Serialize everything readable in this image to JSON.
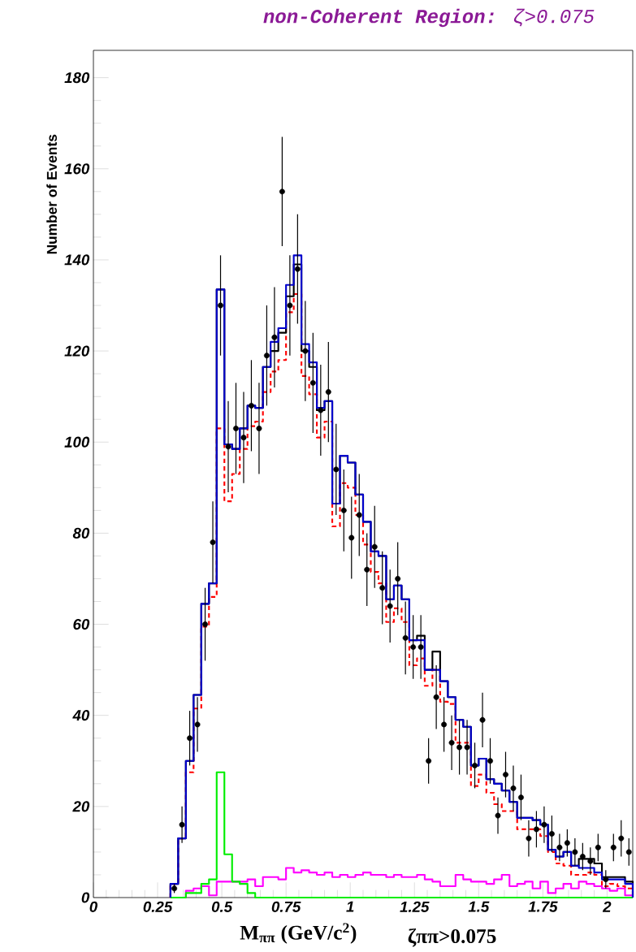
{
  "chart_data": {
    "type": "histogram",
    "title": "**non-Coherent Region:** ζ>0.075",
    "xlabel": "M$_{ππ}$ (GeV/c$^{2}$)",
    "ylabel": "Number of Events",
    "annotations": [
      "ζππ>0.075"
    ],
    "marker": "circle",
    "xlim": [
      0,
      2.1
    ],
    "ylim": [
      0,
      186
    ],
    "xticks": [
      0,
      0.25,
      0.5,
      0.75,
      1,
      1.25,
      1.5,
      1.75,
      2
    ],
    "yticks": [
      0,
      20,
      40,
      60,
      80,
      100,
      120,
      140,
      160,
      180
    ],
    "bins": [
      0.3,
      0.33,
      0.36,
      0.39,
      0.42,
      0.45,
      0.48,
      0.51,
      0.54,
      0.57,
      0.6,
      0.63,
      0.66,
      0.69,
      0.72,
      0.75,
      0.78,
      0.81,
      0.84,
      0.87,
      0.9,
      0.93,
      0.96,
      0.99,
      1.02,
      1.05,
      1.08,
      1.11,
      1.14,
      1.17,
      1.2,
      1.23,
      1.26,
      1.29,
      1.32,
      1.35,
      1.38,
      1.41,
      1.44,
      1.47,
      1.5,
      1.53,
      1.56,
      1.59,
      1.62,
      1.65,
      1.68,
      1.71,
      1.74,
      1.77,
      1.8,
      1.83,
      1.86,
      1.89,
      1.92,
      1.95,
      1.98,
      2.01,
      2.04,
      2.07,
      2.1
    ],
    "series": [
      {
        "color": "#ff00ff",
        "values": [
          0,
          0,
          1.5,
          2,
          2.5,
          0.5,
          3.5,
          3.5,
          3.5,
          3.5,
          4,
          2.5,
          4.5,
          4.5,
          4,
          6.5,
          5.5,
          6,
          5.5,
          5,
          5.5,
          4.5,
          5,
          4.5,
          5,
          5.5,
          5,
          5,
          4.5,
          5,
          4.5,
          4.5,
          5,
          4,
          3.5,
          2.5,
          2.5,
          5,
          4,
          3.5,
          3.5,
          3,
          4,
          5,
          2.5,
          3,
          3.5,
          2,
          3.5,
          1,
          2,
          3,
          2,
          3.5,
          3,
          2.5,
          2,
          1.5,
          2,
          0.5
        ]
      },
      {
        "color": "#00ee00",
        "values": [
          0,
          0,
          1,
          1,
          3,
          4,
          27.5,
          9.5,
          3.5,
          3,
          1,
          0,
          0,
          0,
          0,
          0,
          0,
          0,
          0,
          0,
          0,
          0,
          0,
          0,
          0,
          0,
          0,
          0,
          0,
          0,
          0,
          0,
          0,
          0,
          0,
          0,
          0,
          0,
          0,
          0,
          0,
          0,
          0,
          0,
          0,
          0,
          0,
          0,
          0,
          0,
          0,
          0,
          0,
          0,
          0,
          0,
          0,
          0,
          0,
          0
        ]
      },
      {
        "color": "#ff0000",
        "line_style": "dashed",
        "values": [
          3,
          13,
          27.5,
          41.5,
          59.5,
          66,
          103,
          87,
          93,
          98.5,
          103.5,
          104.5,
          111,
          115.5,
          118,
          128.5,
          132.5,
          114.5,
          110.5,
          101,
          104.5,
          81.5,
          91,
          90,
          84,
          77.5,
          71.5,
          69,
          60.5,
          63.5,
          60.5,
          51,
          52.5,
          46.5,
          50,
          43,
          42.5,
          34,
          34,
          24.5,
          27,
          23,
          20.5,
          19,
          19,
          15,
          15,
          15,
          13.5,
          10,
          7.5,
          7,
          5,
          5,
          5.5,
          5,
          2.5,
          3,
          2.5,
          2
        ]
      },
      {
        "color": "#000000",
        "values": [
          3,
          13,
          30,
          44.5,
          64.5,
          69,
          133.5,
          99.5,
          98.5,
          103,
          108,
          107.5,
          116.5,
          120,
          124,
          132,
          139,
          120,
          116.5,
          107,
          109,
          86.5,
          97,
          95.5,
          88.5,
          82.5,
          76,
          75,
          65.5,
          68.5,
          65.5,
          56.5,
          57.5,
          50,
          54,
          47.5,
          44,
          39,
          37.5,
          29,
          30.5,
          26,
          25,
          23.5,
          21,
          17.5,
          17.5,
          17,
          16,
          10.5,
          9,
          10,
          7,
          8.5,
          8.5,
          7.5,
          4.5,
          4.5,
          4.5,
          3.5
        ]
      },
      {
        "color": "#0000cc",
        "values": [
          3,
          13,
          30,
          44.5,
          64.5,
          69,
          133.5,
          99.5,
          98.5,
          103,
          108,
          107.5,
          116.5,
          122,
          125,
          134.5,
          141,
          121.5,
          117.5,
          107.5,
          109,
          86.5,
          97,
          95.5,
          88.5,
          82.5,
          76,
          75,
          65.5,
          68.5,
          65.5,
          56.5,
          56.5,
          50,
          50,
          47.5,
          44,
          39,
          37.5,
          29,
          30.5,
          26,
          25,
          23.5,
          21,
          17.5,
          17.5,
          17,
          16,
          10.5,
          9,
          10,
          7,
          6.5,
          6.5,
          5.5,
          4,
          4,
          4,
          3
        ]
      },
      {
        "type": "scatter",
        "color": "#000000",
        "x": [
          0.315,
          0.345,
          0.375,
          0.405,
          0.435,
          0.465,
          0.495,
          0.525,
          0.555,
          0.585,
          0.615,
          0.645,
          0.675,
          0.705,
          0.735,
          0.765,
          0.795,
          0.825,
          0.855,
          0.885,
          0.915,
          0.945,
          0.975,
          1.005,
          1.035,
          1.065,
          1.095,
          1.125,
          1.155,
          1.185,
          1.215,
          1.245,
          1.275,
          1.305,
          1.335,
          1.365,
          1.395,
          1.425,
          1.455,
          1.485,
          1.515,
          1.545,
          1.575,
          1.605,
          1.635,
          1.665,
          1.695,
          1.725,
          1.755,
          1.785,
          1.815,
          1.845,
          1.875,
          1.905,
          1.935,
          1.965,
          1.995,
          2.025,
          2.055,
          2.085
        ],
        "values": [
          2,
          16,
          35,
          38,
          60,
          78,
          130,
          99,
          103,
          101,
          108,
          103,
          119,
          123,
          155,
          130,
          138,
          120,
          113,
          107,
          111,
          94,
          85,
          79,
          84,
          72,
          77,
          68,
          64,
          70,
          57,
          55,
          55,
          30,
          44,
          38,
          34,
          33,
          33,
          29,
          39,
          30,
          18,
          27,
          24,
          22,
          13,
          15,
          16,
          14,
          11,
          12,
          10,
          9,
          8,
          11,
          4,
          11,
          13,
          10
        ],
        "errors": [
          1,
          4,
          6,
          6,
          8,
          9,
          11,
          10,
          10,
          10,
          10,
          10,
          11,
          11,
          12,
          11,
          12,
          11,
          11,
          10,
          11,
          10,
          9,
          9,
          9,
          8,
          9,
          8,
          8,
          8,
          8,
          7,
          7,
          5,
          7,
          6,
          6,
          6,
          6,
          5,
          6,
          5,
          4,
          5,
          5,
          5,
          4,
          4,
          4,
          4,
          3,
          3,
          3,
          3,
          3,
          3,
          2,
          3,
          4,
          3
        ]
      }
    ]
  }
}
